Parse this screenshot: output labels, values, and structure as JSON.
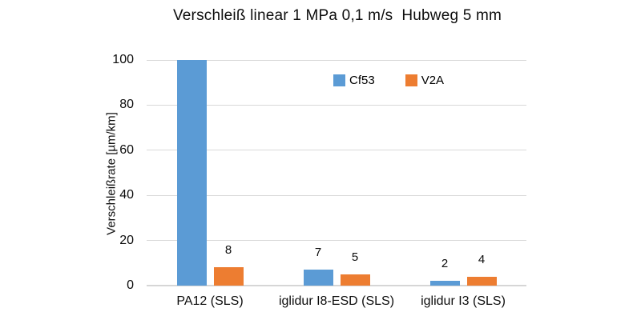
{
  "title": "Verschleiß linear 1 MPa 0,1 m/s  Hubweg 5 mm",
  "chart_data": {
    "type": "bar",
    "title": "Verschleiß linear 1 MPa 0,1 m/s  Hubweg 5 mm",
    "categories": [
      "PA12 (SLS)",
      "iglidur I8-ESD (SLS)",
      "iglidur I3 (SLS)"
    ],
    "series": [
      {
        "name": "Cf53",
        "color": "#5B9BD5",
        "values": [
          100,
          7,
          2
        ],
        "labels": [
          "",
          "7",
          "2"
        ]
      },
      {
        "name": "V2A",
        "color": "#ED7D31",
        "values": [
          8,
          5,
          4
        ],
        "labels": [
          "8",
          "5",
          "4"
        ]
      }
    ],
    "xlabel": "",
    "ylabel": "Verschleißrate [µm/km]",
    "ylim": [
      0,
      100
    ],
    "yticks": [
      0,
      20,
      40,
      60,
      80,
      100
    ],
    "grid": true,
    "legend_position": "top-center",
    "note": "Cf53 bar for PA12 is clipped at axis maximum 100 with no data label shown"
  },
  "colors": {
    "series_blue": "#5B9BD5",
    "series_orange": "#ED7D31",
    "gridline": "#D9D9D9",
    "baseline": "#D6D6D6",
    "text": "#0D0D0D"
  }
}
